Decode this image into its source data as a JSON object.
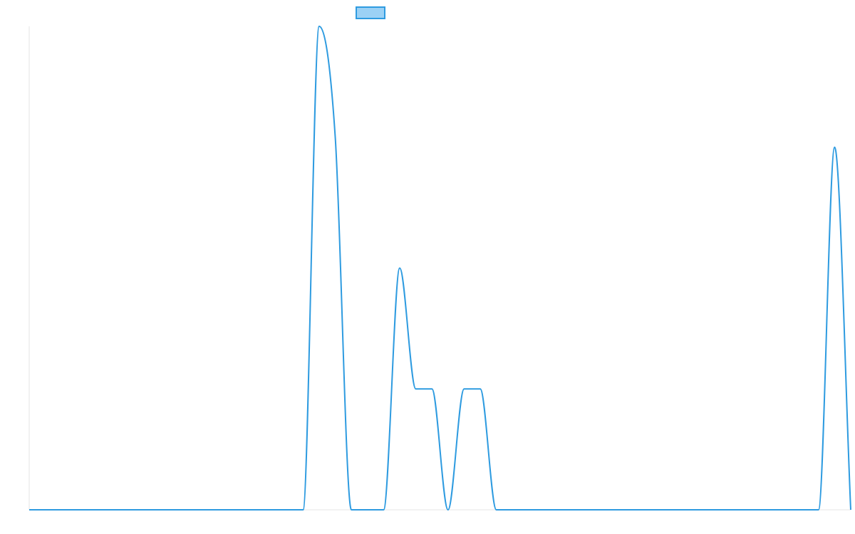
{
  "chart_data": {
    "type": "line",
    "title": "",
    "xlabel": "",
    "ylabel": "",
    "grid": false,
    "legend": {
      "position": "top-center",
      "show_swatch": true
    },
    "colors": {
      "line": "#2e9be0",
      "legend_fill": "#9bd1f5",
      "axis": "#e6e6e6"
    },
    "x": [
      0,
      1,
      2,
      3,
      4,
      5,
      6,
      7,
      8,
      9,
      10,
      11,
      12,
      13,
      14,
      15,
      16,
      17,
      18,
      19,
      20,
      21,
      22,
      23,
      24,
      25,
      26,
      27,
      28,
      29,
      30,
      31,
      32,
      33,
      34,
      35,
      36,
      37,
      38,
      39,
      40,
      41,
      42,
      43,
      44,
      45,
      46,
      47,
      48,
      49,
      50,
      51
    ],
    "xlim": [
      0,
      51
    ],
    "ylim": [
      0,
      100
    ],
    "series": [
      {
        "name": "",
        "values": [
          0,
          0,
          0,
          0,
          0,
          0,
          0,
          0,
          0,
          0,
          0,
          0,
          0,
          0,
          0,
          0,
          0,
          0,
          100,
          77,
          0,
          0,
          0,
          50,
          25,
          25,
          0,
          25,
          25,
          0,
          0,
          0,
          0,
          0,
          0,
          0,
          0,
          0,
          0,
          0,
          0,
          0,
          0,
          0,
          0,
          0,
          0,
          0,
          0,
          0,
          75,
          0
        ]
      }
    ]
  }
}
